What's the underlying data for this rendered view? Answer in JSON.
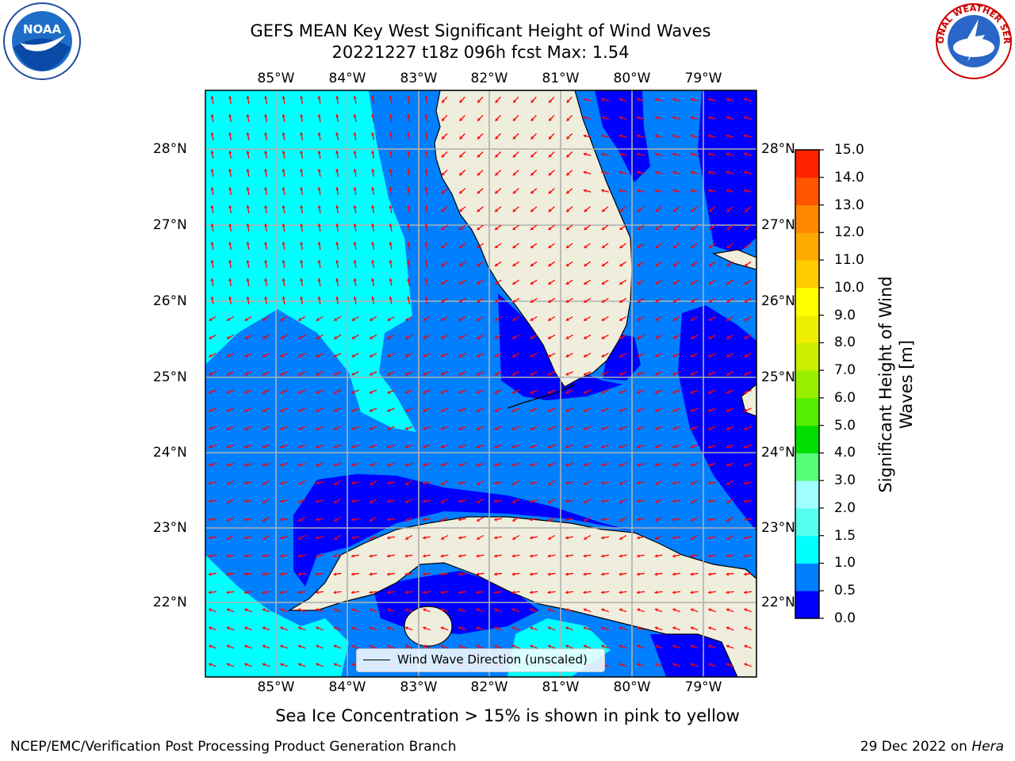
{
  "header": {
    "title_line1": "GEFS MEAN Key West Significant Height of Wind Waves",
    "title_line2": "20221227 t18z 096h fcst   Max: 1.54",
    "noara_logo": {
      "icon": "noaa-logo-icon",
      "text": "NOAA"
    },
    "nws_logo": {
      "icon": "nws-logo-icon",
      "text": "NATIONAL WEATHER SERVICE"
    }
  },
  "map": {
    "lon_ticks": [
      "85°W",
      "84°W",
      "83°W",
      "82°W",
      "81°W",
      "80°W",
      "79°W"
    ],
    "lat_ticks": [
      "28°N",
      "27°N",
      "26°N",
      "25°N",
      "24°N",
      "23°N",
      "22°N"
    ],
    "extent": {
      "lon": [
        -86.0,
        -78.3
      ],
      "lat": [
        21.0,
        28.75
      ]
    },
    "grid": true,
    "colors": {
      "land": "#efeddc",
      "arrow": "#ff0000",
      "coast": "#000000",
      "grid": "#b0b0b0"
    }
  },
  "legend": {
    "label": "Wind Wave Direction (unscaled)"
  },
  "colorbar": {
    "label": "Significant Height of Wind Waves [m]",
    "tick_labels": [
      "0.0",
      "0.5",
      "1.0",
      "1.5",
      "2.0",
      "3.0",
      "4.0",
      "5.0",
      "6.0",
      "7.0",
      "8.0",
      "9.0",
      "10.0",
      "11.0",
      "12.0",
      "13.0",
      "14.0",
      "15.0"
    ],
    "colors": [
      "#0000ff",
      "#007fff",
      "#00ffff",
      "#55ffee",
      "#a0ffff",
      "#55ff77",
      "#00dd00",
      "#55ee00",
      "#99ee00",
      "#ccee00",
      "#eeee00",
      "#ffff00",
      "#ffcc00",
      "#ffaa00",
      "#ff8800",
      "#ff5500",
      "#ff2200"
    ]
  },
  "sea_ice_note": "Sea Ice Concentration > 15% is shown in pink to yellow",
  "footer": {
    "left": "NCEP/EMC/Verification Post Processing Product Generation Branch",
    "right_date": "29 Dec 2022 on ",
    "right_host": "Hera"
  }
}
